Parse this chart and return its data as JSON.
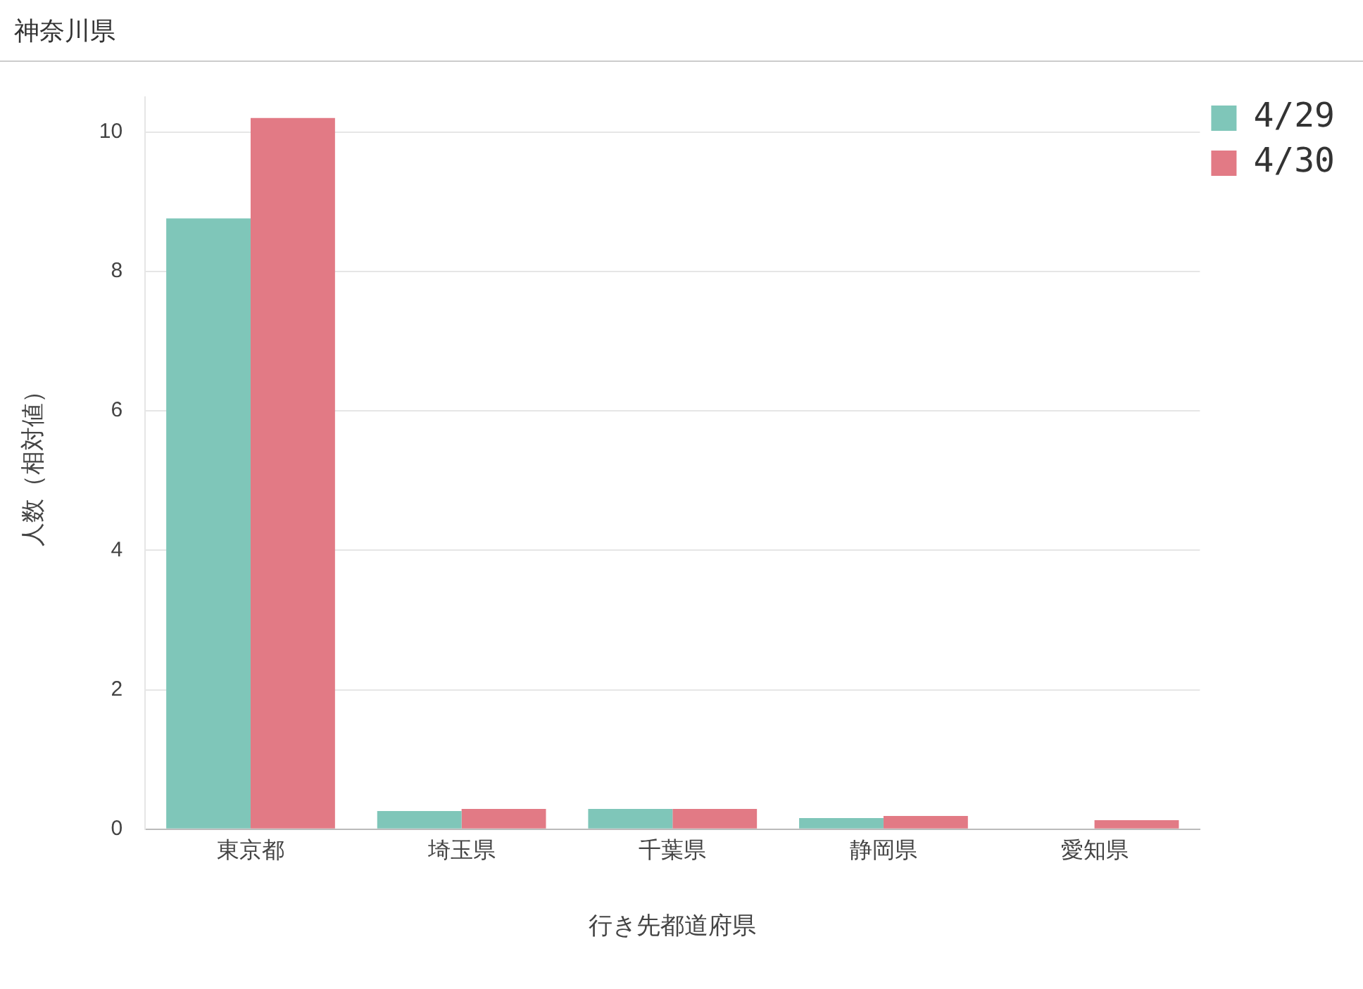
{
  "chart_data": {
    "type": "bar",
    "title": "神奈川県",
    "xlabel": "行き先都道府県",
    "ylabel": "人数（相対値）",
    "categories": [
      "東京都",
      "埼玉県",
      "千葉県",
      "静岡県",
      "愛知県"
    ],
    "series": [
      {
        "name": "4/29",
        "color": "#7fc6b9",
        "values": [
          8.76,
          0.26,
          0.29,
          0.16,
          0
        ]
      },
      {
        "name": "4/30",
        "color": "#e27a85",
        "values": [
          10.2,
          0.29,
          0.29,
          0.19,
          0.13
        ]
      }
    ],
    "ylim": [
      0,
      10.5
    ],
    "yticks": [
      0,
      2,
      4,
      6,
      8,
      10
    ],
    "grid": "y",
    "legend": "top right"
  }
}
